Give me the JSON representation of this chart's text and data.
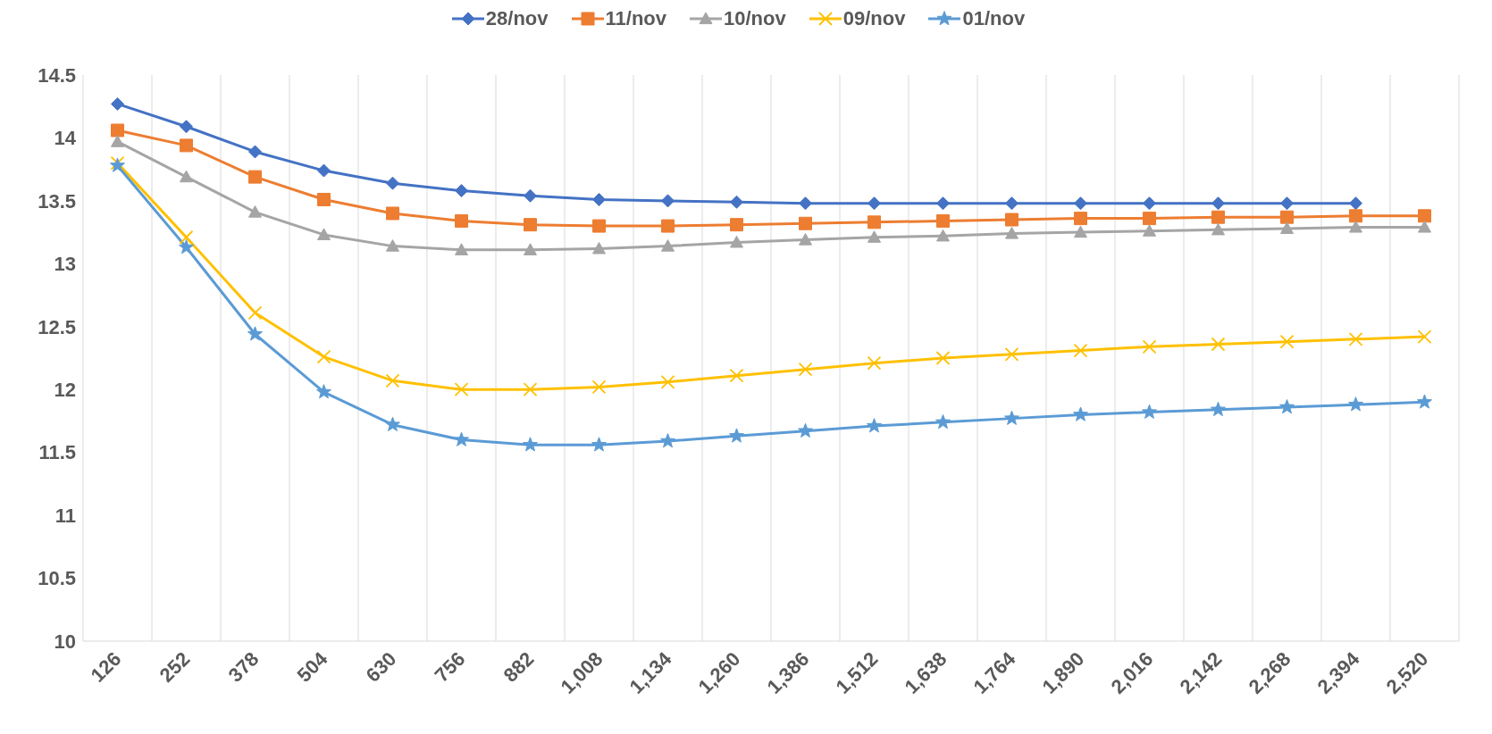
{
  "chart_data": {
    "type": "line",
    "categories": [
      "126",
      "252",
      "378",
      "504",
      "630",
      "756",
      "882",
      "1,008",
      "1,134",
      "1,260",
      "1,386",
      "1,512",
      "1,638",
      "1,764",
      "1,890",
      "2,016",
      "2,142",
      "2,268",
      "2,394",
      "2,520"
    ],
    "series": [
      {
        "name": "28/nov",
        "color": "#4472c4",
        "marker": "diamond",
        "values": [
          14.27,
          14.09,
          13.89,
          13.74,
          13.64,
          13.58,
          13.54,
          13.51,
          13.5,
          13.49,
          13.48,
          13.48,
          13.48,
          13.48,
          13.48,
          13.48,
          13.48,
          13.48,
          13.48,
          null
        ]
      },
      {
        "name": "11/nov",
        "color": "#ed7d31",
        "marker": "square",
        "values": [
          14.06,
          13.94,
          13.69,
          13.51,
          13.4,
          13.34,
          13.31,
          13.3,
          13.3,
          13.31,
          13.32,
          13.33,
          13.34,
          13.35,
          13.36,
          13.36,
          13.37,
          13.37,
          13.38,
          13.38
        ]
      },
      {
        "name": "10/nov",
        "color": "#a5a5a5",
        "marker": "triangle",
        "values": [
          13.97,
          13.69,
          13.41,
          13.23,
          13.14,
          13.11,
          13.11,
          13.12,
          13.14,
          13.17,
          13.19,
          13.21,
          13.22,
          13.24,
          13.25,
          13.26,
          13.27,
          13.28,
          13.29,
          13.29
        ]
      },
      {
        "name": "09/nov",
        "color": "#ffc000",
        "marker": "cross",
        "values": [
          13.8,
          13.21,
          12.61,
          12.26,
          12.07,
          12.0,
          12.0,
          12.02,
          12.06,
          12.11,
          12.16,
          12.21,
          12.25,
          12.28,
          12.31,
          12.34,
          12.36,
          12.38,
          12.4,
          12.42
        ]
      },
      {
        "name": "01/nov",
        "color": "#5b9bd5",
        "marker": "star",
        "values": [
          13.78,
          13.13,
          12.44,
          11.98,
          11.72,
          11.6,
          11.56,
          11.56,
          11.59,
          11.63,
          11.67,
          11.71,
          11.74,
          11.77,
          11.8,
          11.82,
          11.84,
          11.86,
          11.88,
          11.9
        ]
      }
    ],
    "ylim": [
      10,
      14.5
    ],
    "yticks": [
      10,
      10.5,
      11,
      11.5,
      12,
      12.5,
      13,
      13.5,
      14,
      14.5
    ],
    "grid": "x",
    "legend": "top"
  }
}
